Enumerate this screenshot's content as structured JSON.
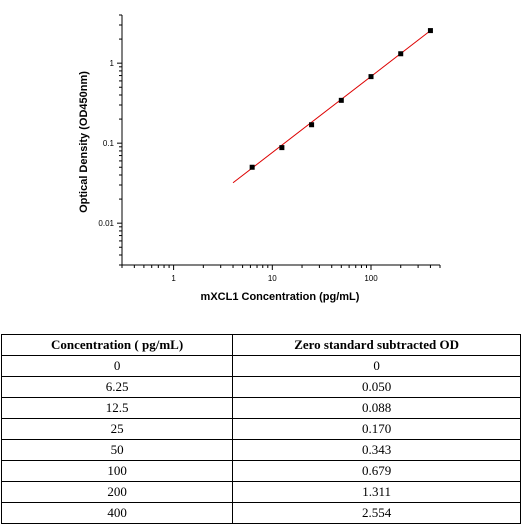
{
  "chart_data": {
    "type": "scatter",
    "xlabel": "mXCL1 Concentration (pg/mL)",
    "ylabel": "Optical Density (OD450nm)",
    "xscale": "log",
    "yscale": "log",
    "xlim": [
      0.3,
      500
    ],
    "ylim": [
      0.003,
      4
    ],
    "x_ticks": [
      1,
      10,
      100
    ],
    "x_tick_labels": [
      "1",
      "10",
      "100"
    ],
    "y_ticks": [
      0.01,
      0.1,
      1
    ],
    "y_tick_labels": [
      "0.01",
      "0.1",
      "1"
    ],
    "grid": false,
    "legend": "none",
    "series": [
      {
        "x": [
          6.25,
          12.5,
          25,
          50,
          100,
          200,
          400
        ],
        "y": [
          0.05,
          0.088,
          0.17,
          0.343,
          0.679,
          1.311,
          2.554
        ],
        "color": "#000000"
      }
    ],
    "fit_line": {
      "x": [
        4,
        400
      ],
      "y": [
        0.032,
        2.55
      ],
      "color": "#dd0000"
    }
  },
  "table": {
    "headers": [
      "Concentration ( pg/mL)",
      "Zero standard subtracted OD"
    ],
    "rows": [
      [
        "0",
        "0"
      ],
      [
        "6.25",
        "0.050"
      ],
      [
        "12.5",
        "0.088"
      ],
      [
        "25",
        "0.170"
      ],
      [
        "50",
        "0.343"
      ],
      [
        "100",
        "0.679"
      ],
      [
        "200",
        "1.311"
      ],
      [
        "400",
        "2.554"
      ]
    ]
  }
}
